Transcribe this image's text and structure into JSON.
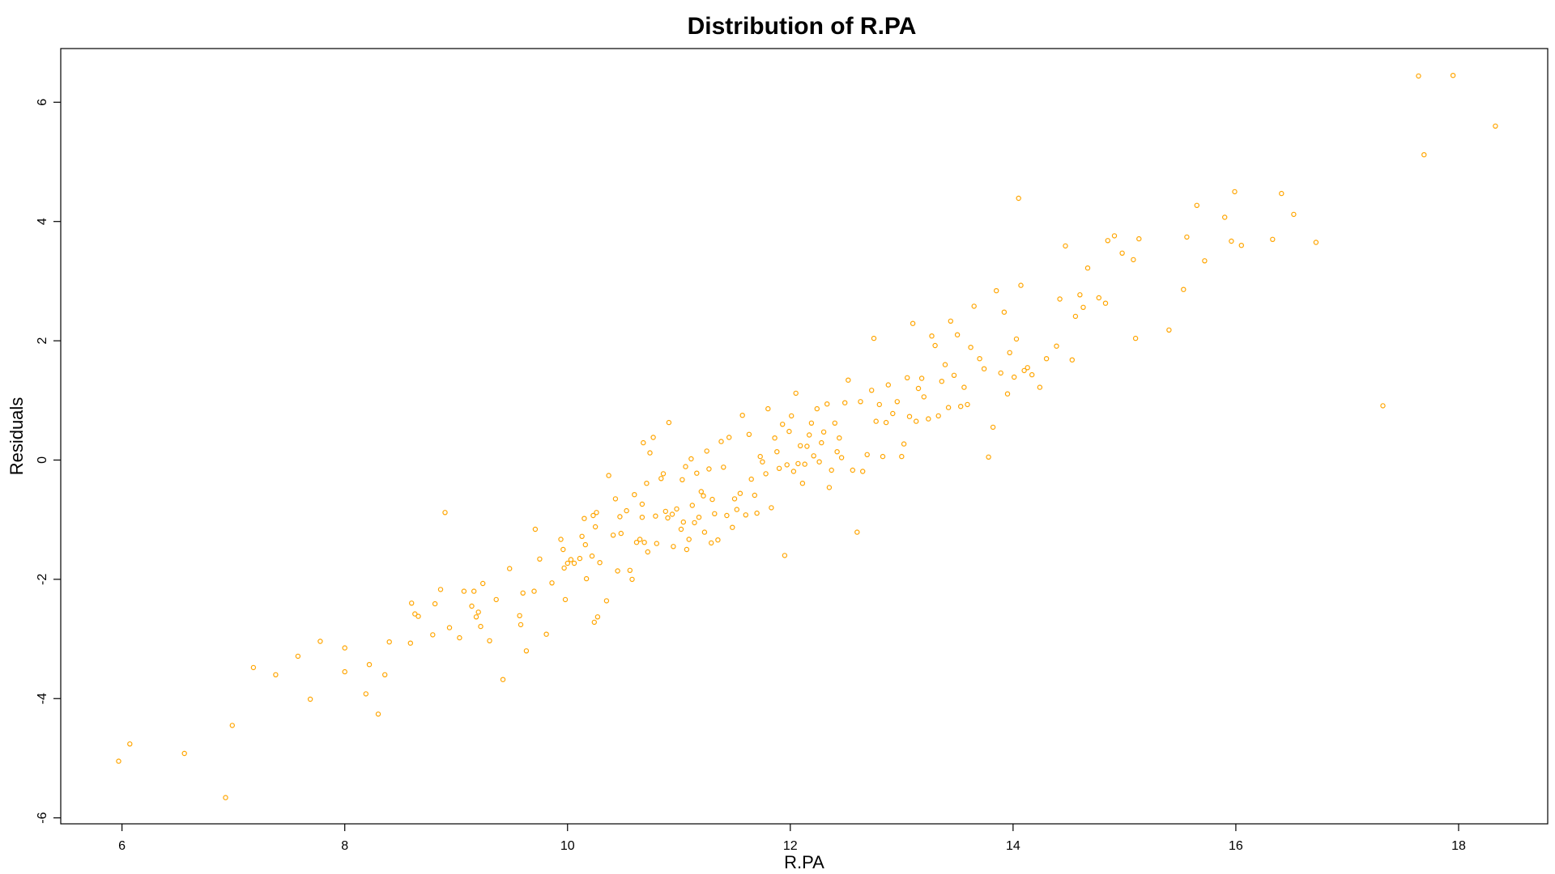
{
  "chart_data": {
    "type": "scatter",
    "title": "Distribution of R.PA",
    "xlabel": "R.PA",
    "ylabel": "Residuals",
    "xlim": [
      5.45,
      18.8
    ],
    "ylim": [
      -6.1,
      6.9
    ],
    "x_ticks": [
      6,
      8,
      10,
      12,
      14,
      16,
      18
    ],
    "y_ticks": [
      -6,
      -4,
      -2,
      0,
      2,
      4,
      6
    ],
    "grid": false,
    "legend": "none",
    "marker": "open-circle",
    "point_color": "#FFA500",
    "points": [
      [
        5.97,
        -5.05
      ],
      [
        6.07,
        -4.76
      ],
      [
        6.56,
        -4.92
      ],
      [
        6.93,
        -5.66
      ],
      [
        6.99,
        -4.45
      ],
      [
        7.18,
        -3.48
      ],
      [
        7.38,
        -3.6
      ],
      [
        7.58,
        -3.29
      ],
      [
        7.69,
        -4.01
      ],
      [
        7.78,
        -3.04
      ],
      [
        8.0,
        -3.15
      ],
      [
        8.0,
        -3.55
      ],
      [
        8.19,
        -3.92
      ],
      [
        8.22,
        -3.43
      ],
      [
        8.3,
        -4.26
      ],
      [
        8.36,
        -3.6
      ],
      [
        8.4,
        -3.05
      ],
      [
        8.59,
        -3.07
      ],
      [
        8.6,
        -2.4
      ],
      [
        8.63,
        -2.58
      ],
      [
        8.66,
        -2.62
      ],
      [
        8.79,
        -2.93
      ],
      [
        8.81,
        -2.41
      ],
      [
        8.86,
        -2.17
      ],
      [
        8.9,
        -0.88
      ],
      [
        8.94,
        -2.81
      ],
      [
        9.03,
        -2.98
      ],
      [
        9.07,
        -2.2
      ],
      [
        9.14,
        -2.45
      ],
      [
        9.16,
        -2.2
      ],
      [
        9.18,
        -2.63
      ],
      [
        9.2,
        -2.55
      ],
      [
        9.22,
        -2.79
      ],
      [
        9.24,
        -2.07
      ],
      [
        9.3,
        -3.03
      ],
      [
        9.36,
        -2.34
      ],
      [
        9.42,
        -3.68
      ],
      [
        9.48,
        -1.82
      ],
      [
        9.57,
        -2.61
      ],
      [
        9.58,
        -2.76
      ],
      [
        9.6,
        -2.23
      ],
      [
        9.63,
        -3.2
      ],
      [
        9.7,
        -2.2
      ],
      [
        9.71,
        -1.16
      ],
      [
        9.75,
        -1.66
      ],
      [
        9.81,
        -2.92
      ],
      [
        9.86,
        -2.06
      ],
      [
        9.94,
        -1.33
      ],
      [
        9.96,
        -1.5
      ],
      [
        9.97,
        -1.81
      ],
      [
        9.98,
        -2.34
      ],
      [
        10.0,
        -1.73
      ],
      [
        10.03,
        -1.67
      ],
      [
        10.06,
        -1.73
      ],
      [
        10.11,
        -1.65
      ],
      [
        10.13,
        -1.28
      ],
      [
        10.15,
        -0.98
      ],
      [
        10.16,
        -1.42
      ],
      [
        10.17,
        -1.99
      ],
      [
        10.22,
        -1.61
      ],
      [
        10.23,
        -0.93
      ],
      [
        10.24,
        -2.72
      ],
      [
        10.25,
        -1.12
      ],
      [
        10.26,
        -0.88
      ],
      [
        10.27,
        -2.63
      ],
      [
        10.29,
        -1.72
      ],
      [
        10.35,
        -2.36
      ],
      [
        10.37,
        -0.26
      ],
      [
        10.41,
        -1.26
      ],
      [
        10.43,
        -0.65
      ],
      [
        10.45,
        -1.86
      ],
      [
        10.47,
        -0.95
      ],
      [
        10.48,
        -1.23
      ],
      [
        10.53,
        -0.85
      ],
      [
        10.56,
        -1.85
      ],
      [
        10.58,
        -2.0
      ],
      [
        10.6,
        -0.58
      ],
      [
        10.62,
        -1.38
      ],
      [
        10.65,
        -1.33
      ],
      [
        10.67,
        -0.74
      ],
      [
        10.67,
        -0.96
      ],
      [
        10.68,
        0.29
      ],
      [
        10.69,
        -1.38
      ],
      [
        10.71,
        -0.39
      ],
      [
        10.72,
        -1.54
      ],
      [
        10.74,
        0.12
      ],
      [
        10.77,
        0.38
      ],
      [
        10.79,
        -0.94
      ],
      [
        10.8,
        -1.4
      ],
      [
        10.84,
        -0.31
      ],
      [
        10.86,
        -0.23
      ],
      [
        10.88,
        -0.86
      ],
      [
        10.9,
        -0.97
      ],
      [
        10.91,
        0.63
      ],
      [
        10.94,
        -0.91
      ],
      [
        10.95,
        -1.45
      ],
      [
        10.98,
        -0.82
      ],
      [
        11.02,
        -1.16
      ],
      [
        11.03,
        -0.33
      ],
      [
        11.04,
        -1.04
      ],
      [
        11.06,
        -0.11
      ],
      [
        11.07,
        -1.5
      ],
      [
        11.09,
        -1.33
      ],
      [
        11.11,
        0.02
      ],
      [
        11.12,
        -0.76
      ],
      [
        11.14,
        -1.05
      ],
      [
        11.16,
        -0.22
      ],
      [
        11.18,
        -0.96
      ],
      [
        11.2,
        -0.53
      ],
      [
        11.22,
        -0.6
      ],
      [
        11.23,
        -1.21
      ],
      [
        11.25,
        0.15
      ],
      [
        11.27,
        -0.15
      ],
      [
        11.29,
        -1.39
      ],
      [
        11.3,
        -0.66
      ],
      [
        11.32,
        -0.9
      ],
      [
        11.35,
        -1.34
      ],
      [
        11.38,
        0.31
      ],
      [
        11.4,
        -0.12
      ],
      [
        11.43,
        -0.93
      ],
      [
        11.45,
        0.38
      ],
      [
        11.48,
        -1.13
      ],
      [
        11.5,
        -0.65
      ],
      [
        11.52,
        -0.83
      ],
      [
        11.55,
        -0.56
      ],
      [
        11.57,
        0.75
      ],
      [
        11.6,
        -0.92
      ],
      [
        11.63,
        0.43
      ],
      [
        11.65,
        -0.32
      ],
      [
        11.68,
        -0.59
      ],
      [
        11.7,
        -0.89
      ],
      [
        11.73,
        0.06
      ],
      [
        11.75,
        -0.03
      ],
      [
        11.78,
        -0.23
      ],
      [
        11.8,
        0.86
      ],
      [
        11.83,
        -0.8
      ],
      [
        11.86,
        0.37
      ],
      [
        11.88,
        0.14
      ],
      [
        11.9,
        -0.14
      ],
      [
        11.93,
        0.6
      ],
      [
        11.95,
        -1.6
      ],
      [
        11.97,
        -0.08
      ],
      [
        11.99,
        0.48
      ],
      [
        12.01,
        0.74
      ],
      [
        12.03,
        -0.19
      ],
      [
        12.05,
        1.12
      ],
      [
        12.07,
        -0.06
      ],
      [
        12.09,
        0.24
      ],
      [
        12.11,
        -0.39
      ],
      [
        12.13,
        -0.07
      ],
      [
        12.15,
        0.23
      ],
      [
        12.17,
        0.42
      ],
      [
        12.19,
        0.62
      ],
      [
        12.21,
        0.07
      ],
      [
        12.24,
        0.86
      ],
      [
        12.26,
        -0.03
      ],
      [
        12.28,
        0.29
      ],
      [
        12.3,
        0.47
      ],
      [
        12.33,
        0.94
      ],
      [
        12.35,
        -0.46
      ],
      [
        12.37,
        -0.17
      ],
      [
        12.4,
        0.62
      ],
      [
        12.42,
        0.14
      ],
      [
        12.44,
        0.37
      ],
      [
        12.46,
        0.04
      ],
      [
        12.49,
        0.96
      ],
      [
        12.52,
        1.34
      ],
      [
        12.56,
        -0.17
      ],
      [
        12.6,
        -1.21
      ],
      [
        12.63,
        0.98
      ],
      [
        12.65,
        -0.19
      ],
      [
        12.69,
        0.09
      ],
      [
        12.73,
        1.17
      ],
      [
        12.75,
        2.04
      ],
      [
        12.77,
        0.65
      ],
      [
        12.8,
        0.93
      ],
      [
        12.83,
        0.06
      ],
      [
        12.86,
        0.63
      ],
      [
        12.88,
        1.26
      ],
      [
        12.92,
        0.78
      ],
      [
        12.96,
        0.98
      ],
      [
        13.0,
        0.06
      ],
      [
        13.02,
        0.27
      ],
      [
        13.05,
        1.38
      ],
      [
        13.07,
        0.73
      ],
      [
        13.1,
        2.29
      ],
      [
        13.13,
        0.65
      ],
      [
        13.15,
        1.2
      ],
      [
        13.18,
        1.37
      ],
      [
        13.2,
        1.06
      ],
      [
        13.24,
        0.69
      ],
      [
        13.27,
        2.08
      ],
      [
        13.3,
        1.92
      ],
      [
        13.33,
        0.74
      ],
      [
        13.36,
        1.32
      ],
      [
        13.39,
        1.6
      ],
      [
        13.42,
        0.88
      ],
      [
        13.44,
        2.33
      ],
      [
        13.47,
        1.42
      ],
      [
        13.5,
        2.1
      ],
      [
        13.53,
        0.9
      ],
      [
        13.56,
        1.22
      ],
      [
        13.59,
        0.93
      ],
      [
        13.62,
        1.89
      ],
      [
        13.65,
        2.58
      ],
      [
        13.7,
        1.7
      ],
      [
        13.74,
        1.53
      ],
      [
        13.78,
        0.05
      ],
      [
        13.82,
        0.55
      ],
      [
        13.85,
        2.84
      ],
      [
        13.89,
        1.46
      ],
      [
        13.92,
        2.48
      ],
      [
        13.95,
        1.11
      ],
      [
        13.97,
        1.8
      ],
      [
        14.01,
        1.39
      ],
      [
        14.03,
        2.03
      ],
      [
        14.05,
        4.39
      ],
      [
        14.07,
        2.93
      ],
      [
        14.1,
        1.5
      ],
      [
        14.13,
        1.55
      ],
      [
        14.17,
        1.43
      ],
      [
        14.24,
        1.22
      ],
      [
        14.3,
        1.7
      ],
      [
        14.39,
        1.91
      ],
      [
        14.42,
        2.7
      ],
      [
        14.47,
        3.59
      ],
      [
        14.53,
        1.68
      ],
      [
        14.56,
        2.41
      ],
      [
        14.6,
        2.77
      ],
      [
        14.63,
        2.56
      ],
      [
        14.67,
        3.22
      ],
      [
        14.77,
        2.72
      ],
      [
        14.83,
        2.63
      ],
      [
        14.85,
        3.68
      ],
      [
        14.91,
        3.76
      ],
      [
        14.98,
        3.47
      ],
      [
        15.08,
        3.36
      ],
      [
        15.1,
        2.04
      ],
      [
        15.13,
        3.71
      ],
      [
        15.4,
        2.18
      ],
      [
        15.53,
        2.86
      ],
      [
        15.56,
        3.74
      ],
      [
        15.65,
        4.27
      ],
      [
        15.72,
        3.34
      ],
      [
        15.9,
        4.07
      ],
      [
        15.96,
        3.67
      ],
      [
        15.99,
        4.5
      ],
      [
        16.05,
        3.6
      ],
      [
        16.33,
        3.7
      ],
      [
        16.41,
        4.47
      ],
      [
        16.52,
        4.12
      ],
      [
        16.72,
        3.65
      ],
      [
        17.32,
        0.91
      ],
      [
        17.64,
        6.44
      ],
      [
        17.69,
        5.12
      ],
      [
        17.95,
        6.45
      ],
      [
        18.33,
        5.6
      ]
    ]
  }
}
